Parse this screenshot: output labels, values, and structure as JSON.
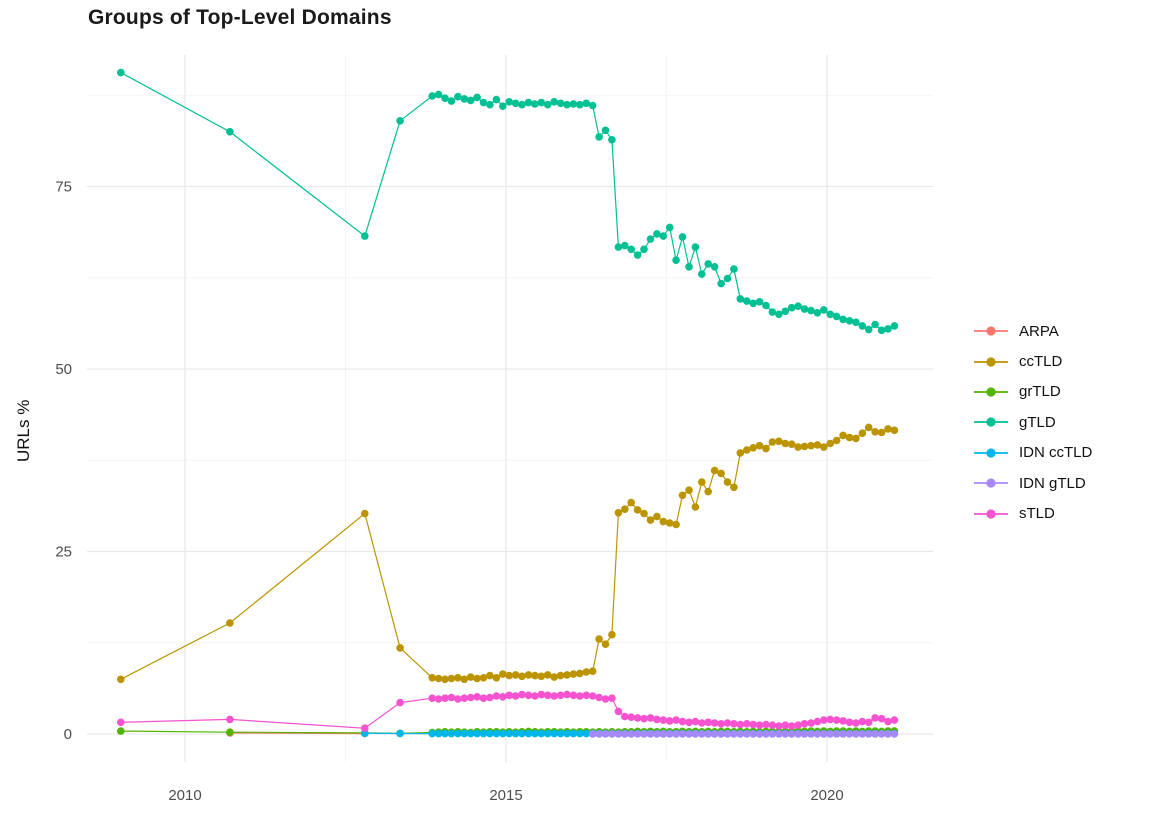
{
  "title": "Groups of Top-Level Domains",
  "axes": {
    "y_label": "URLs %",
    "x_tick_labels": [
      "2010",
      "2015",
      "2020"
    ],
    "y_tick_labels": [
      "0",
      "25",
      "50",
      "75"
    ]
  },
  "legend": {
    "position": "right",
    "items": [
      "ARPA",
      "ccTLD",
      "grTLD",
      "gTLD",
      "IDN ccTLD",
      "IDN gTLD",
      "sTLD"
    ]
  },
  "style": {
    "grid_major_color": "#e9e9e9",
    "grid_minor_color": "#f4f4f4",
    "tick_label_color": "#4d4d4d",
    "title_color": "#1a1a1a"
  },
  "chart_data": {
    "type": "line",
    "title": "Groups of Top-Level Domains",
    "xlabel": "",
    "ylabel": "URLs %",
    "xlim": [
      2008.45,
      2021.65
    ],
    "ylim": [
      -3.5,
      92.7
    ],
    "x_ticks": [
      2010,
      2015,
      2020
    ],
    "y_ticks": [
      0,
      25,
      50,
      75
    ],
    "x_minor_gridlines": [
      2012.5,
      2017.5
    ],
    "y_minor_gridlines": [
      12.5,
      37.5,
      62.5,
      87.5
    ],
    "grid": "on",
    "legend_position": "right",
    "marker": "filled-circle",
    "series": [
      {
        "name": "ARPA",
        "color": "#F8766D",
        "sparse": [
          [
            2010.7,
            0.15
          ],
          [
            2012.8,
            0.05
          ]
        ]
      },
      {
        "name": "ccTLD",
        "color": "#BC9400",
        "sparse": [
          [
            2009.0,
            7.5
          ],
          [
            2010.7,
            15.2
          ],
          [
            2012.8,
            30.2
          ],
          [
            2013.35,
            11.8
          ]
        ],
        "dense": {
          "x_start": 2013.85,
          "x_step": 0.1,
          "values": [
            7.7,
            7.6,
            7.5,
            7.6,
            7.7,
            7.5,
            7.8,
            7.6,
            7.7,
            8.0,
            7.7,
            8.2,
            8.0,
            8.1,
            7.9,
            8.1,
            8.0,
            7.9,
            8.1,
            7.8,
            8.0,
            8.1,
            8.2,
            8.3,
            8.5,
            8.6,
            13.0,
            12.3,
            13.6,
            30.3,
            30.8,
            31.7,
            30.7,
            30.2,
            29.3,
            29.8,
            29.1,
            28.9,
            28.7,
            32.7,
            33.4,
            31.1,
            34.5,
            33.2,
            36.1,
            35.7,
            34.5,
            33.8,
            38.5,
            38.9,
            39.2,
            39.5,
            39.1,
            40.0,
            40.1,
            39.8,
            39.7,
            39.3,
            39.4,
            39.5,
            39.6,
            39.3,
            39.8,
            40.2,
            40.9,
            40.6,
            40.5,
            41.2,
            42.0,
            41.4,
            41.3,
            41.8,
            41.6
          ]
        }
      },
      {
        "name": "grTLD",
        "color": "#53B400",
        "sparse": [
          [
            2009.0,
            0.4
          ],
          [
            2010.7,
            0.25
          ],
          [
            2012.8,
            0.15
          ],
          [
            2013.35,
            0.1
          ]
        ],
        "dense": {
          "x_start": 2013.85,
          "x_step": 0.1,
          "values": [
            0.2,
            0.25,
            0.3,
            0.25,
            0.3,
            0.25,
            0.2,
            0.3,
            0.25,
            0.3,
            0.3,
            0.25,
            0.3,
            0.25,
            0.3,
            0.35,
            0.3,
            0.25,
            0.3,
            0.3,
            0.25,
            0.3,
            0.25,
            0.3,
            0.3,
            0.25,
            0.3,
            0.25,
            0.3,
            0.25,
            0.3,
            0.3,
            0.35,
            0.3,
            0.35,
            0.3,
            0.35,
            0.3,
            0.3,
            0.35,
            0.3,
            0.35,
            0.3,
            0.35,
            0.3,
            0.35,
            0.35,
            0.3,
            0.35,
            0.3,
            0.35,
            0.3,
            0.35,
            0.35,
            0.3,
            0.35,
            0.35,
            0.4,
            0.35,
            0.4,
            0.35,
            0.4,
            0.35,
            0.4,
            0.4,
            0.35,
            0.4,
            0.35,
            0.4,
            0.4,
            0.35,
            0.4,
            0.4
          ]
        }
      },
      {
        "name": "gTLD",
        "color": "#00C094",
        "sparse": [
          [
            2009.0,
            90.6
          ],
          [
            2010.7,
            82.5
          ],
          [
            2012.8,
            68.2
          ],
          [
            2013.35,
            84.0
          ]
        ],
        "dense": {
          "x_start": 2013.85,
          "x_step": 0.1,
          "values": [
            87.4,
            87.6,
            87.1,
            86.7,
            87.3,
            87.0,
            86.8,
            87.2,
            86.5,
            86.2,
            86.9,
            86.0,
            86.6,
            86.4,
            86.2,
            86.5,
            86.3,
            86.5,
            86.2,
            86.6,
            86.4,
            86.2,
            86.3,
            86.2,
            86.4,
            86.1,
            81.8,
            82.7,
            81.4,
            66.7,
            66.9,
            66.4,
            65.6,
            66.4,
            67.8,
            68.5,
            68.2,
            69.4,
            64.9,
            68.1,
            64.0,
            66.7,
            63.0,
            64.4,
            64.0,
            61.7,
            62.4,
            63.7,
            59.6,
            59.3,
            59.0,
            59.2,
            58.7,
            57.8,
            57.5,
            57.9,
            58.4,
            58.6,
            58.2,
            58.0,
            57.7,
            58.1,
            57.5,
            57.2,
            56.8,
            56.6,
            56.4,
            55.9,
            55.4,
            56.1,
            55.3,
            55.5,
            55.9
          ]
        }
      },
      {
        "name": "IDN ccTLD",
        "color": "#00B6EB",
        "sparse": [
          [
            2012.8,
            0.1
          ],
          [
            2013.35,
            0.07
          ]
        ],
        "dense": {
          "x_start": 2013.85,
          "x_step": 0.1,
          "n": 73,
          "fill": 0.05
        }
      },
      {
        "name": "IDN gTLD",
        "color": "#A58AFF",
        "sparse": [],
        "dense": {
          "x_start": 2016.35,
          "x_step": 0.1,
          "n": 48,
          "fill": 0.02
        }
      },
      {
        "name": "sTLD",
        "color": "#F653D0",
        "sparse": [
          [
            2009.0,
            1.6
          ],
          [
            2010.7,
            2.0
          ],
          [
            2012.8,
            0.8
          ],
          [
            2013.35,
            4.3
          ]
        ],
        "dense": {
          "x_start": 2013.85,
          "x_step": 0.1,
          "values": [
            4.9,
            4.8,
            4.9,
            5.0,
            4.8,
            4.9,
            5.0,
            5.1,
            4.9,
            5.0,
            5.2,
            5.1,
            5.3,
            5.2,
            5.4,
            5.3,
            5.2,
            5.4,
            5.3,
            5.2,
            5.3,
            5.4,
            5.3,
            5.2,
            5.3,
            5.2,
            5.0,
            4.8,
            4.9,
            3.1,
            2.4,
            2.3,
            2.2,
            2.1,
            2.2,
            2.0,
            1.9,
            1.8,
            1.9,
            1.7,
            1.6,
            1.7,
            1.5,
            1.6,
            1.5,
            1.4,
            1.5,
            1.4,
            1.3,
            1.4,
            1.3,
            1.2,
            1.3,
            1.2,
            1.1,
            1.2,
            1.1,
            1.2,
            1.4,
            1.5,
            1.7,
            1.9,
            2.0,
            1.9,
            1.8,
            1.6,
            1.5,
            1.7,
            1.6,
            2.2,
            2.1,
            1.7,
            1.9
          ]
        }
      }
    ]
  }
}
